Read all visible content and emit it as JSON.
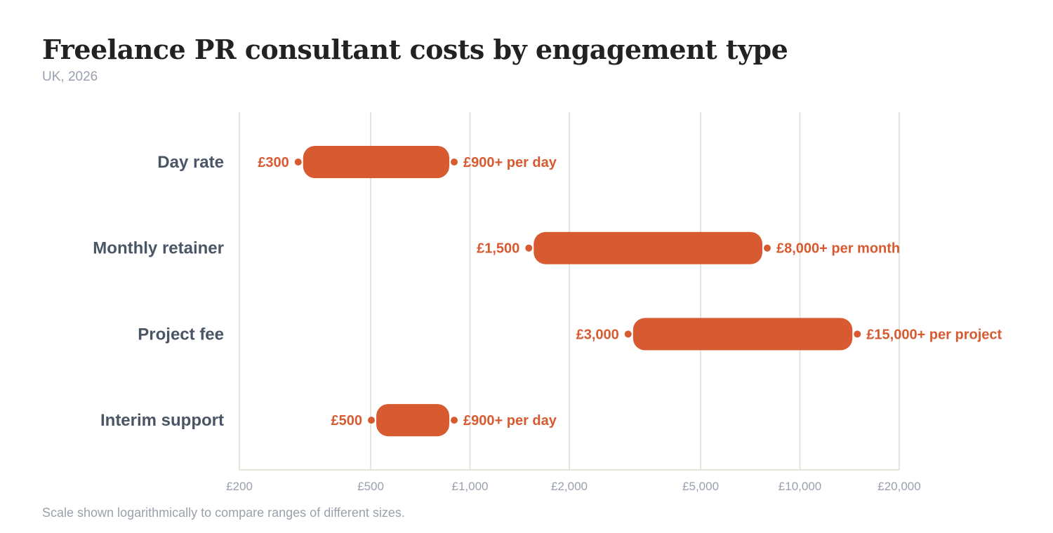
{
  "chart_data": {
    "type": "range-bar",
    "title": "Freelance PR consultant costs by engagement type",
    "subtitle": "UK, 2026",
    "note": "Scale shown logarithmically to compare ranges of different sizes.",
    "x_scale": "log",
    "xlim": [
      200,
      20000
    ],
    "x_ticks": [
      {
        "value": 200,
        "label": "£200"
      },
      {
        "value": 500,
        "label": "£500"
      },
      {
        "value": 1000,
        "label": "£1,000"
      },
      {
        "value": 2000,
        "label": "£2,000"
      },
      {
        "value": 5000,
        "label": "£5,000"
      },
      {
        "value": 10000,
        "label": "£10,000"
      },
      {
        "value": 20000,
        "label": "£20,000"
      }
    ],
    "grid": true,
    "bar_color": "#d75a31",
    "categories": [
      {
        "name": "Day rate",
        "min": 300,
        "max": 900,
        "min_label": "£300",
        "max_label": "£900+ per day"
      },
      {
        "name": "Monthly retainer",
        "min": 1500,
        "max": 8000,
        "min_label": "£1,500",
        "max_label": "£8,000+ per month"
      },
      {
        "name": "Project fee",
        "min": 3000,
        "max": 15000,
        "min_label": "£3,000",
        "max_label": "£15,000+ per project"
      },
      {
        "name": "Interim support",
        "min": 500,
        "max": 900,
        "min_label": "£500",
        "max_label": "£900+ per day"
      }
    ]
  }
}
